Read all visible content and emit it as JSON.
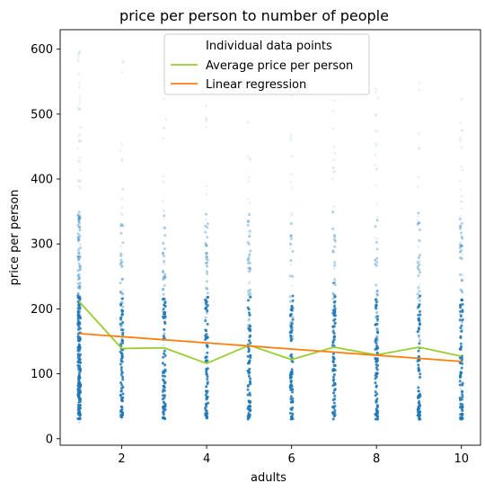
{
  "chart_data": {
    "type": "scatter",
    "title": "price per person to number of people",
    "xlabel": "adults",
    "ylabel": "price per person",
    "xlim": [
      0.55,
      10.45
    ],
    "ylim": [
      -10,
      630
    ],
    "xticks": [
      2,
      4,
      6,
      8,
      10
    ],
    "yticks": [
      0,
      100,
      200,
      300,
      400,
      500,
      600
    ],
    "grid": false,
    "legend": {
      "placement": "top-center",
      "entries": [
        "Individual data points",
        "Average price per person",
        "Linear regression"
      ]
    },
    "x": [
      1,
      2,
      3,
      4,
      5,
      6,
      7,
      8,
      9,
      10
    ],
    "series": [
      {
        "name": "Individual data points",
        "type": "scatter",
        "color": "#1f77b4",
        "x": [
          1,
          2,
          3,
          4,
          5,
          6,
          7,
          8,
          9,
          10
        ],
        "y_range": [
          [
            18,
            600
          ],
          [
            25,
            590
          ],
          [
            25,
            590
          ],
          [
            28,
            560
          ],
          [
            30,
            570
          ],
          [
            30,
            560
          ],
          [
            25,
            560
          ],
          [
            25,
            560
          ],
          [
            25,
            590
          ],
          [
            20,
            560
          ]
        ]
      },
      {
        "name": "Average price per person",
        "type": "line",
        "color": "#9acd32",
        "x": [
          1,
          2,
          3,
          4,
          5,
          6,
          7,
          8,
          9,
          10
        ],
        "values": [
          211,
          139,
          140,
          116,
          144,
          122,
          141,
          129,
          141,
          127
        ]
      },
      {
        "name": "Linear regression",
        "type": "line",
        "color": "#ff7f0e",
        "x": [
          1,
          10
        ],
        "values": [
          162,
          119
        ]
      }
    ]
  }
}
